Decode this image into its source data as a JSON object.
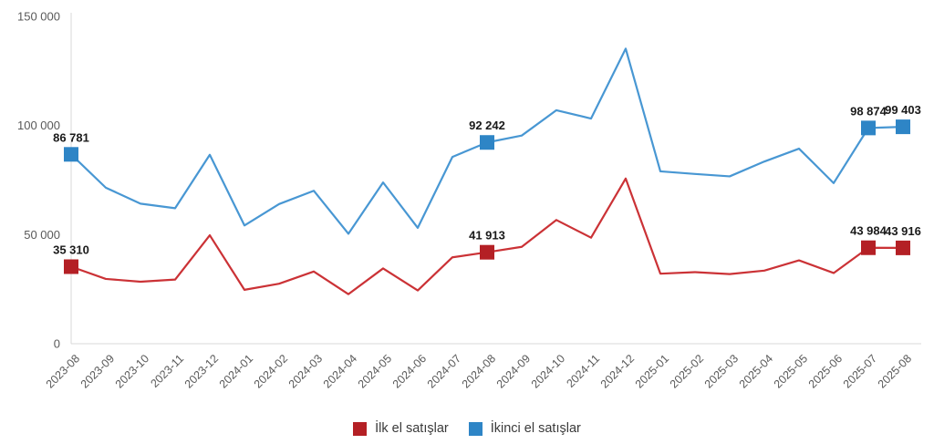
{
  "chart_data": {
    "type": "line",
    "x": [
      "2023-08",
      "2023-09",
      "2023-10",
      "2023-11",
      "2023-12",
      "2024-01",
      "2024-02",
      "2024-03",
      "2024-04",
      "2024-05",
      "2024-06",
      "2024-07",
      "2024-08",
      "2024-09",
      "2024-10",
      "2024-11",
      "2024-12",
      "2025-01",
      "2025-02",
      "2025-03",
      "2025-04",
      "2025-05",
      "2025-06",
      "2025-07",
      "2025-08"
    ],
    "series": [
      {
        "name": "İlk el satışlar",
        "line_color": "#cb3236",
        "marker_color": "#b42025",
        "values": [
          35310,
          29700,
          28400,
          29400,
          49700,
          24700,
          27500,
          33100,
          22700,
          34500,
          24400,
          39600,
          41913,
          44400,
          56700,
          48600,
          75700,
          32100,
          32800,
          31900,
          33500,
          38200,
          32400,
          43984,
          43916
        ],
        "labeled_points": [
          {
            "index": 0,
            "text": "35 310"
          },
          {
            "index": 12,
            "text": "41 913"
          },
          {
            "index": 23,
            "text": "43 984"
          },
          {
            "index": 24,
            "text": "43 916"
          }
        ]
      },
      {
        "name": "İkinci el satışlar",
        "line_color": "#4897d3",
        "marker_color": "#2e85c6",
        "values": [
          86781,
          71500,
          64200,
          62100,
          86600,
          54200,
          64000,
          70100,
          50400,
          73900,
          53100,
          85600,
          92242,
          95400,
          107000,
          103200,
          135200,
          79000,
          77800,
          76700,
          83500,
          89400,
          73600,
          98874,
          99403
        ],
        "labeled_points": [
          {
            "index": 0,
            "text": "86 781"
          },
          {
            "index": 12,
            "text": "92 242"
          },
          {
            "index": 23,
            "text": "98 874"
          },
          {
            "index": 24,
            "text": "99 403"
          }
        ]
      }
    ],
    "ylim": [
      0,
      150000
    ],
    "yticks": [
      {
        "value": 0,
        "label": "0"
      },
      {
        "value": 50000,
        "label": "50 000"
      },
      {
        "value": 100000,
        "label": "100 000"
      },
      {
        "value": 150000,
        "label": "150 000"
      }
    ],
    "grid": false,
    "legend_position": "bottom",
    "axis_color": "#d9d9d9",
    "tick_label_color": "#595959",
    "data_label_color": "#1a1a1a"
  }
}
